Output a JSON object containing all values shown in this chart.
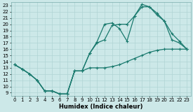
{
  "xlabel": "Humidex (Indice chaleur)",
  "ylabel": "",
  "xlim": [
    -0.5,
    23.5
  ],
  "ylim": [
    8.5,
    23.5
  ],
  "xticks": [
    0,
    1,
    2,
    3,
    4,
    5,
    6,
    7,
    8,
    9,
    10,
    11,
    12,
    13,
    14,
    15,
    16,
    17,
    18,
    19,
    20,
    21,
    22,
    23
  ],
  "yticks": [
    9,
    10,
    11,
    12,
    13,
    14,
    15,
    16,
    17,
    18,
    19,
    20,
    21,
    22,
    23
  ],
  "line_color": "#1a7a6e",
  "bg_color": "#cce8e8",
  "grid_color": "#b0d4d4",
  "line1_x": [
    0,
    1,
    2,
    3,
    4,
    5,
    6,
    7,
    8,
    9,
    10,
    11,
    12,
    13,
    14,
    15,
    16,
    17,
    18,
    19,
    20,
    21,
    22,
    23
  ],
  "line1_y": [
    13.5,
    12.8,
    12.0,
    11.0,
    9.3,
    9.3,
    8.8,
    8.8,
    12.5,
    12.5,
    13.0,
    13.0,
    13.0,
    13.2,
    13.5,
    14.0,
    14.5,
    15.0,
    15.5,
    15.8,
    16.0,
    16.0,
    16.0,
    16.0
  ],
  "line2_x": [
    0,
    1,
    2,
    3,
    4,
    5,
    6,
    7,
    8,
    9,
    10,
    11,
    12,
    13,
    14,
    15,
    16,
    17,
    18,
    19,
    20,
    21,
    22,
    23
  ],
  "line2_y": [
    13.5,
    12.8,
    12.0,
    11.0,
    9.3,
    9.3,
    8.8,
    8.8,
    12.5,
    12.5,
    15.3,
    17.0,
    17.5,
    19.8,
    20.0,
    20.0,
    21.3,
    22.8,
    22.8,
    21.5,
    20.5,
    18.5,
    17.3,
    16.0
  ],
  "line3_x": [
    0,
    1,
    2,
    3,
    4,
    5,
    6,
    7,
    8,
    9,
    10,
    11,
    12,
    13,
    14,
    15,
    16,
    17,
    18,
    19,
    20,
    21,
    22,
    23
  ],
  "line3_y": [
    13.5,
    12.8,
    12.0,
    11.0,
    9.3,
    9.3,
    8.8,
    8.8,
    12.5,
    12.5,
    15.3,
    17.2,
    20.0,
    20.2,
    19.3,
    17.3,
    21.3,
    23.2,
    22.8,
    21.8,
    20.5,
    17.5,
    17.0,
    16.0
  ],
  "tick_fontsize": 5,
  "xlabel_fontsize": 6,
  "lw": 0.9,
  "marker_size": 2.5
}
